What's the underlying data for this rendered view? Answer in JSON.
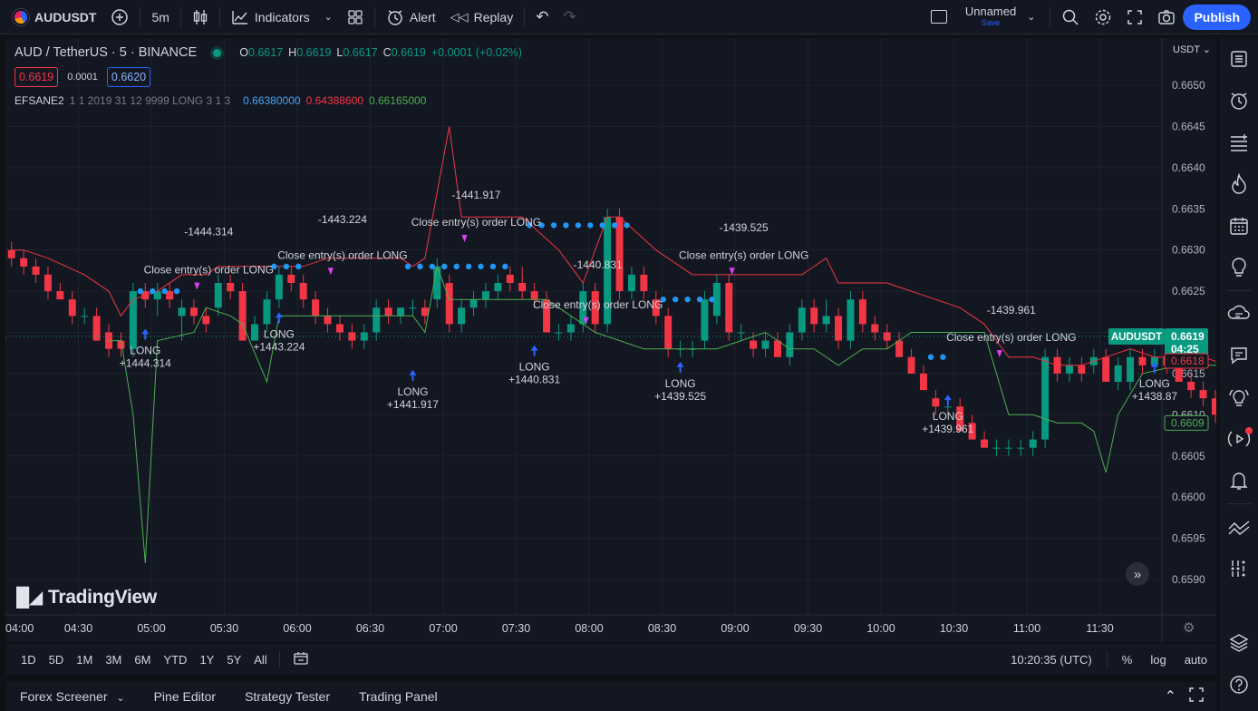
{
  "topbar": {
    "symbol": "AUDUSDT",
    "interval": "5m",
    "indicators_label": "Indicators",
    "alert_label": "Alert",
    "replay_label": "Replay",
    "layout_name": "Unnamed",
    "layout_status": "Save",
    "publish_label": "Publish"
  },
  "legend": {
    "title": "AUD / TetherUS · 5 · BINANCE",
    "ohlc": [
      {
        "k": "O",
        "v": "0.6617"
      },
      {
        "k": "H",
        "v": "0.6619"
      },
      {
        "k": "L",
        "v": "0.6617"
      },
      {
        "k": "C",
        "v": "0.6619"
      }
    ],
    "change": "+0.0001 (+0.02%)",
    "sell_price": "0.6619",
    "spread": "0.0001",
    "buy_price": "0.6620",
    "indicator_name": "EFSANE2",
    "indicator_params": "1 1 2019 31 12 9999 LONG 3 1 3",
    "indicator_values": [
      "0.66380000",
      "0.64388600",
      "0.66165000"
    ]
  },
  "chart": {
    "currency": "USDT",
    "watermark": "TradingView",
    "price_ticks": [
      "0.6650",
      "0.6645",
      "0.6640",
      "0.6635",
      "0.6630",
      "0.6625",
      "0.6620",
      "0.6615",
      "0.6610",
      "0.6605",
      "0.6600",
      "0.6595",
      "0.6590"
    ],
    "time_ticks": [
      "04:00",
      "04:30",
      "05:00",
      "05:30",
      "06:00",
      "06:30",
      "07:00",
      "07:30",
      "08:00",
      "08:30",
      "09:00",
      "09:30",
      "10:00",
      "10:30",
      "11:00",
      "11:30"
    ],
    "price_labels": {
      "symbol": "AUDUSDT",
      "last": "0.6619",
      "countdown": "04:25",
      "red_line": "0.6618",
      "green_line": "0.6609"
    },
    "trades": [
      {
        "close_pnl": "-1444.314",
        "close_text": "Close entry(s) order LONG",
        "entry_text": "LONG",
        "entry_pnl": "+1444.314"
      },
      {
        "close_pnl": "-1443.224",
        "close_text": "Close entry(s) order LONG",
        "entry_text": "LONG",
        "entry_pnl": "+1443.224"
      },
      {
        "close_pnl": "-1441.917",
        "close_text": "Close entry(s) order LONG",
        "entry_text": "LONG",
        "entry_pnl": "+1441.917"
      },
      {
        "close_pnl": "-1440.831",
        "close_text": "Close entry(s) order LONG",
        "entry_text": "LONG",
        "entry_pnl": "+1440.831"
      },
      {
        "close_pnl": "-1439.525",
        "close_text": "Close entry(s) order LONG",
        "entry_text": "LONG",
        "entry_pnl": "+1439.525"
      },
      {
        "close_pnl": "-1439.961",
        "close_text": "Close entry(s) order LONG",
        "entry_text": "LONG",
        "entry_pnl": "+1439.961"
      },
      {
        "entry_text": "LONG",
        "entry_pnl": "+1438.87"
      }
    ],
    "colors": {
      "up": "#089981",
      "down": "#f23645",
      "upper_line": "#f23645",
      "lower_line": "#4caf50",
      "dots": "#2196f3",
      "close_marker": "#e040fb",
      "entry_marker": "#2962ff"
    }
  },
  "range_bar": {
    "ranges": [
      "1D",
      "5D",
      "1M",
      "3M",
      "6M",
      "YTD",
      "1Y",
      "5Y",
      "All"
    ],
    "clock": "10:20:35 (UTC)",
    "percent": "%",
    "log": "log",
    "auto": "auto"
  },
  "bottom_tabs": [
    "Forex Screener",
    "Pine Editor",
    "Strategy Tester",
    "Trading Panel"
  ]
}
